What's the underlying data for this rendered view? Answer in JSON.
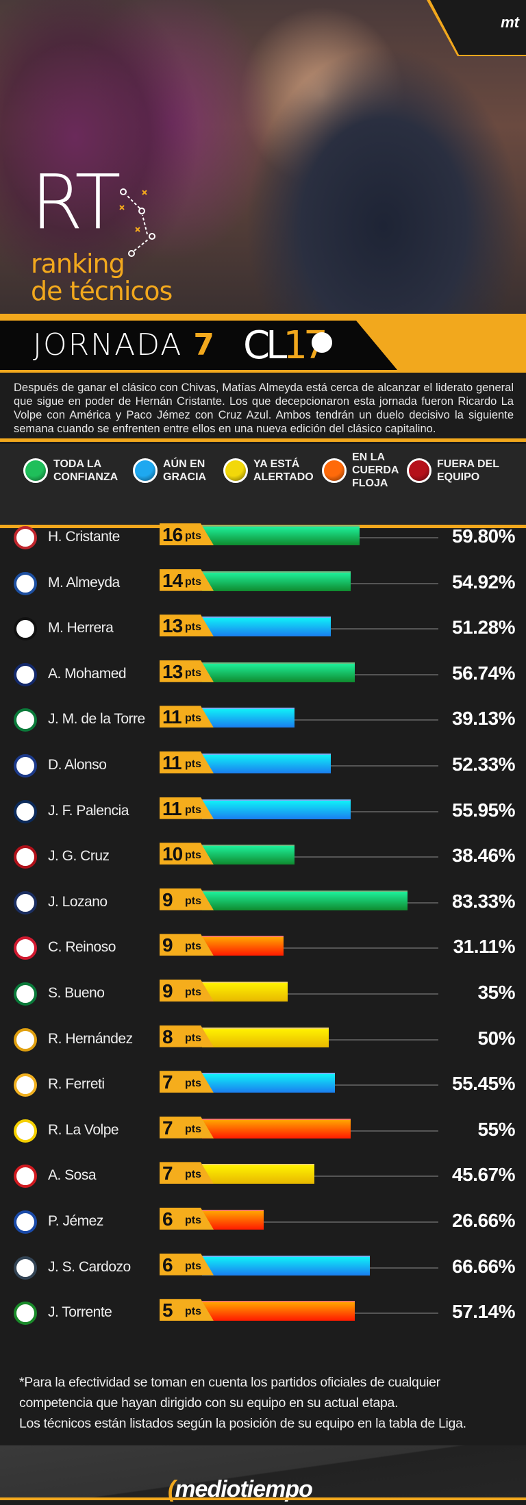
{
  "header": {
    "brand_corner": "mt",
    "logo_big": "RT",
    "logo_sub1": "ranking",
    "logo_sub2": "de técnicos",
    "jornada_label": "JORNADA",
    "jornada_number": "7",
    "tournament_a": "CL",
    "tournament_b": "17"
  },
  "intro": "Después de ganar el clásico con Chivas, Matías Almeyda está cerca de alcanzar el liderato general que sigue en poder de Hernán Cristante. Los que decepcionaron esta jornada fueron Ricardo La Volpe con América y Paco Jémez con Cruz Azul. Ambos tendrán un duelo decisivo la siguiente semana cuando se enfrenten entre ellos en una nueva edición del clásico capitalino.",
  "legend": [
    {
      "label": "TODA LA CONFIANZA",
      "color": "#1fbf5a"
    },
    {
      "label": "AÚN EN GRACIA",
      "color": "#1ea8f0"
    },
    {
      "label": "YA ESTÁ ALERTADO",
      "color": "#f2d80a"
    },
    {
      "label": "EN LA CUERDA FLOJA",
      "color": "#ff6a0a"
    },
    {
      "label": "FUERA DEL EQUIPO",
      "color": "#b5111a"
    }
  ],
  "pts_unit": "pts",
  "rows": [
    {
      "name": "H. Cristante",
      "points": "16",
      "pct": "59.80%",
      "status": "green"
    },
    {
      "name": "M. Almeyda",
      "points": "14",
      "pct": "54.92%",
      "status": "green"
    },
    {
      "name": "M. Herrera",
      "points": "13",
      "pct": "51.28%",
      "status": "blue"
    },
    {
      "name": "A. Mohamed",
      "points": "13",
      "pct": "56.74%",
      "status": "green"
    },
    {
      "name": "J. M. de la Torre",
      "points": "11",
      "pct": "39.13%",
      "status": "blue"
    },
    {
      "name": "D. Alonso",
      "points": "11",
      "pct": "52.33%",
      "status": "blue"
    },
    {
      "name": "J. F. Palencia",
      "points": "11",
      "pct": "55.95%",
      "status": "blue"
    },
    {
      "name": "J. G. Cruz",
      "points": "10",
      "pct": "38.46%",
      "status": "green"
    },
    {
      "name": "J. Lozano",
      "points": "9",
      "pct": "83.33%",
      "status": "green"
    },
    {
      "name": "C. Reinoso",
      "points": "9",
      "pct": "31.11%",
      "status": "orange"
    },
    {
      "name": "S. Bueno",
      "points": "9",
      "pct": "35%",
      "status": "yellow"
    },
    {
      "name": "R. Hernández",
      "points": "8",
      "pct": "50%",
      "status": "yellow"
    },
    {
      "name": "R. Ferreti",
      "points": "7",
      "pct": "55.45%",
      "status": "blue"
    },
    {
      "name": "R. La Volpe",
      "points": "7",
      "pct": "55%",
      "status": "orange"
    },
    {
      "name": "A. Sosa",
      "points": "7",
      "pct": "45.67%",
      "status": "yellow"
    },
    {
      "name": "P. Jémez",
      "points": "6",
      "pct": "26.66%",
      "status": "orange"
    },
    {
      "name": "J. S. Cardozo",
      "points": "6",
      "pct": "66.66%",
      "status": "blue"
    },
    {
      "name": "J. Torrente",
      "points": "5",
      "pct": "57.14%",
      "status": "orange"
    }
  ],
  "note": [
    "*Para la efectividad se toman en cuenta los partidos oficiales de cualquier",
    "competencia que hayan dirigido con su equipo en su actual etapa.",
    "Los técnicos están listados según la posición de su equipo en la tabla de Liga."
  ],
  "footer": {
    "logo": "mediotiempo"
  },
  "colors": {
    "accent": "#f2a81d"
  }
}
